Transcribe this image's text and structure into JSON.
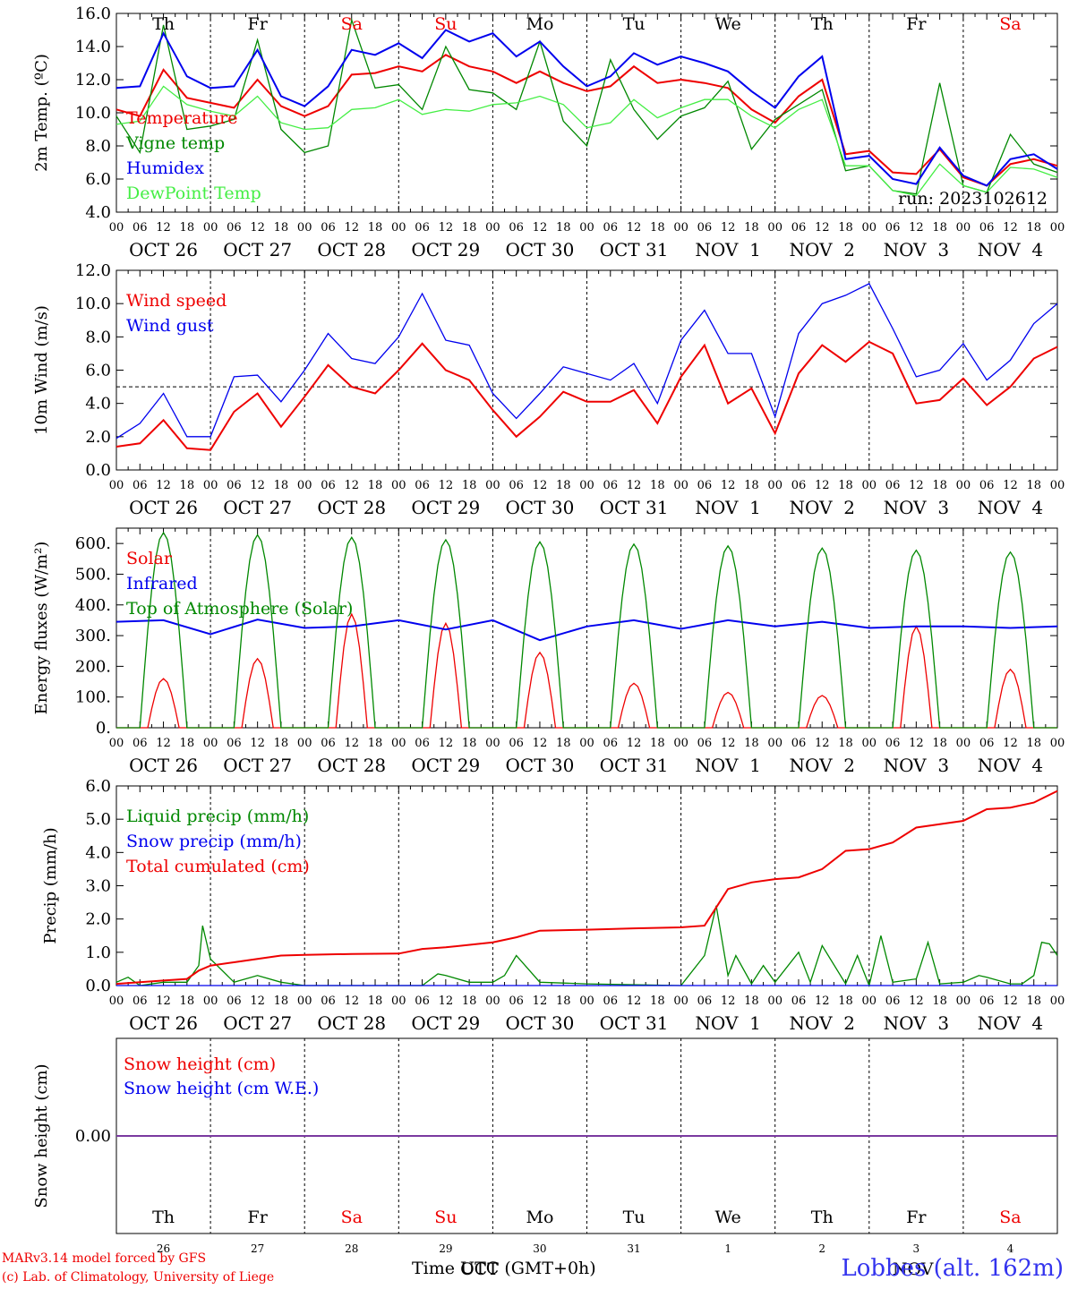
{
  "run_label": "run: 2023102612",
  "x_tick_hours": [
    "00",
    "06",
    "12",
    "18"
  ],
  "date_labels": [
    "OCT 26",
    "OCT 27",
    "OCT 28",
    "OCT 29",
    "OCT 30",
    "OCT 31",
    "NOV  1",
    "NOV  2",
    "NOV  3",
    "NOV  4"
  ],
  "weekdays": [
    "Th",
    "Fr",
    "Sa",
    "Su",
    "Mo",
    "Tu",
    "We",
    "Th",
    "Fr",
    "Sa"
  ],
  "weekend_color": "#ee0000",
  "bottom_day_numbers": [
    "26",
    "27",
    "28",
    "29",
    "30",
    "31",
    "1",
    "2",
    "3",
    "4"
  ],
  "bottom_month_labels": [
    "OCT",
    "NOV"
  ],
  "footer": {
    "model": "MARv3.14 model forced by GFS",
    "lab": "(c) Lab. of Climatology, University of Liege",
    "xlabel": "Time UTC (GMT+0h)",
    "station": "Lobbes (alt. 162m)"
  },
  "chart_data": [
    {
      "type": "line",
      "ylabel": "2m Temp. (ºC)",
      "ylim": [
        4.0,
        16.0
      ],
      "yticks": [
        "4.0",
        "6.0",
        "8.0",
        "10.0",
        "12.0",
        "14.0",
        "16.0"
      ],
      "x_units": "hours since OCT 26 00 UTC",
      "series": [
        {
          "name": "Temperature",
          "color": "#ee0000",
          "x": [
            0,
            6,
            12,
            18,
            24,
            30,
            36,
            42,
            48,
            54,
            60,
            66,
            72,
            78,
            84,
            90,
            96,
            102,
            108,
            114,
            120,
            126,
            132,
            138,
            144,
            150,
            156,
            162,
            168,
            174,
            180,
            186,
            192,
            198,
            204,
            210,
            216,
            222,
            228,
            234,
            240
          ],
          "y": [
            10.2,
            9.8,
            12.6,
            10.9,
            10.6,
            10.3,
            12.0,
            10.4,
            9.8,
            10.4,
            12.3,
            12.4,
            12.8,
            12.5,
            13.5,
            12.8,
            12.5,
            11.8,
            12.5,
            11.8,
            11.3,
            11.6,
            12.8,
            11.8,
            12.0,
            11.8,
            11.5,
            10.2,
            9.4,
            11.0,
            12.0,
            7.5,
            7.7,
            6.4,
            6.3,
            7.8,
            6.1,
            5.6,
            6.9,
            7.2,
            6.8
          ]
        },
        {
          "name": "Vigne temp",
          "color": "#008800",
          "x": [
            0,
            6,
            12,
            18,
            24,
            30,
            36,
            42,
            48,
            54,
            60,
            66,
            72,
            78,
            84,
            90,
            96,
            102,
            108,
            114,
            120,
            126,
            132,
            138,
            144,
            150,
            156,
            162,
            168,
            174,
            180,
            186,
            192,
            198,
            204,
            210,
            216,
            222,
            228,
            234,
            240
          ],
          "y": [
            9.8,
            7.6,
            15.3,
            9.0,
            9.2,
            9.6,
            14.4,
            9.0,
            7.6,
            8.0,
            15.6,
            11.5,
            11.7,
            10.2,
            14.0,
            11.4,
            11.2,
            10.2,
            14.3,
            9.5,
            8.0,
            13.2,
            10.2,
            8.4,
            9.8,
            10.3,
            11.9,
            7.8,
            9.6,
            10.5,
            11.4,
            6.5,
            6.8,
            5.3,
            5.1,
            11.8,
            5.6,
            5.2,
            8.7,
            6.9,
            6.4
          ]
        },
        {
          "name": "Humidex",
          "color": "#0000ee",
          "x": [
            0,
            6,
            12,
            18,
            24,
            30,
            36,
            42,
            48,
            54,
            60,
            66,
            72,
            78,
            84,
            90,
            96,
            102,
            108,
            114,
            120,
            126,
            132,
            138,
            144,
            150,
            156,
            162,
            168,
            174,
            180,
            186,
            192,
            198,
            204,
            210,
            216,
            222,
            228,
            234,
            240
          ],
          "y": [
            11.5,
            11.6,
            14.8,
            12.2,
            11.5,
            11.6,
            13.8,
            11.0,
            10.4,
            11.6,
            13.8,
            13.5,
            14.2,
            13.3,
            15.0,
            14.3,
            14.8,
            13.4,
            14.3,
            12.8,
            11.6,
            12.2,
            13.6,
            12.9,
            13.4,
            13.0,
            12.5,
            11.3,
            10.3,
            12.2,
            13.4,
            7.2,
            7.4,
            6.0,
            5.7,
            7.9,
            6.2,
            5.6,
            7.2,
            7.5,
            6.6
          ]
        },
        {
          "name": "DewPoint Temp",
          "color": "#44ee44",
          "x": [
            0,
            6,
            12,
            18,
            24,
            30,
            36,
            42,
            48,
            54,
            60,
            66,
            72,
            78,
            84,
            90,
            96,
            102,
            108,
            114,
            120,
            126,
            132,
            138,
            144,
            150,
            156,
            162,
            168,
            174,
            180,
            186,
            192,
            198,
            204,
            210,
            216,
            222,
            228,
            234,
            240
          ],
          "y": [
            9.3,
            9.5,
            11.6,
            10.5,
            10.1,
            9.8,
            11.0,
            9.4,
            9.0,
            9.1,
            10.2,
            10.3,
            10.8,
            9.9,
            10.2,
            10.1,
            10.5,
            10.6,
            11.0,
            10.5,
            9.1,
            9.4,
            10.8,
            9.7,
            10.3,
            10.8,
            10.8,
            9.8,
            9.1,
            10.2,
            10.8,
            6.8,
            6.8,
            5.3,
            5.0,
            6.9,
            5.6,
            5.2,
            6.7,
            6.6,
            6.1
          ]
        }
      ]
    },
    {
      "type": "line",
      "ylabel": "10m Wind (m/s)",
      "ylim": [
        0.0,
        12.0
      ],
      "yticks": [
        "0.0",
        "2.0",
        "4.0",
        "6.0",
        "8.0",
        "10.0",
        "12.0"
      ],
      "reference_line": 5.0,
      "x_units": "hours since OCT 26 00 UTC",
      "series": [
        {
          "name": "Wind speed",
          "color": "#ee0000",
          "x": [
            0,
            6,
            12,
            18,
            24,
            30,
            36,
            42,
            48,
            54,
            60,
            66,
            72,
            78,
            84,
            90,
            96,
            102,
            108,
            114,
            120,
            126,
            132,
            138,
            144,
            150,
            156,
            162,
            168,
            174,
            180,
            186,
            192,
            198,
            204,
            210,
            216,
            222,
            228,
            234,
            240
          ],
          "y": [
            1.4,
            1.6,
            3.0,
            1.3,
            1.2,
            3.5,
            4.6,
            2.6,
            4.4,
            6.3,
            5.0,
            4.6,
            6.0,
            7.6,
            6.0,
            5.4,
            3.6,
            2.0,
            3.2,
            4.7,
            4.1,
            4.1,
            4.8,
            2.8,
            5.6,
            7.5,
            4.0,
            4.9,
            2.2,
            5.8,
            7.5,
            6.5,
            7.7,
            7.0,
            4.0,
            4.2,
            5.5,
            3.9,
            5.0,
            6.7,
            7.4
          ]
        },
        {
          "name": "Wind gust",
          "color": "#0000ee",
          "x": [
            0,
            6,
            12,
            18,
            24,
            30,
            36,
            42,
            48,
            54,
            60,
            66,
            72,
            78,
            84,
            90,
            96,
            102,
            108,
            114,
            120,
            126,
            132,
            138,
            144,
            150,
            156,
            162,
            168,
            174,
            180,
            186,
            192,
            198,
            204,
            210,
            216,
            222,
            228,
            234,
            240
          ],
          "y": [
            1.9,
            2.8,
            4.6,
            2.0,
            2.0,
            5.6,
            5.7,
            4.1,
            6.0,
            8.2,
            6.7,
            6.4,
            8.0,
            10.6,
            7.8,
            7.5,
            4.6,
            3.1,
            4.6,
            6.2,
            5.8,
            5.4,
            6.4,
            4.0,
            7.8,
            9.6,
            7.0,
            7.0,
            3.2,
            8.2,
            10.0,
            10.5,
            11.2,
            8.5,
            5.6,
            6.0,
            7.6,
            5.4,
            6.6,
            8.8,
            10.0
          ]
        }
      ]
    },
    {
      "type": "line",
      "ylabel": "Energy fluxes (W/m²)",
      "ylim": [
        0,
        650
      ],
      "yticks": [
        "0.",
        "100.",
        "200.",
        "300.",
        "400.",
        "500.",
        "600."
      ],
      "x_units": "hours since OCT 26 00 UTC",
      "series": [
        {
          "name": "Solar",
          "color": "#ee0000",
          "peaks": [
            {
              "day": "OCT 26",
              "value": 160
            },
            {
              "day": "OCT 27",
              "value": 225
            },
            {
              "day": "OCT 28",
              "value": 370
            },
            {
              "day": "OCT 29",
              "value": 340
            },
            {
              "day": "OCT 30",
              "value": 245
            },
            {
              "day": "OCT 31",
              "value": 145
            },
            {
              "day": "NOV 1",
              "value": 115
            },
            {
              "day": "NOV 2",
              "value": 105
            },
            {
              "day": "NOV 3",
              "value": 330
            },
            {
              "day": "NOV 4",
              "value": 190
            }
          ]
        },
        {
          "name": "Infrared",
          "color": "#0000ee",
          "x": [
            0,
            12,
            24,
            36,
            48,
            60,
            72,
            84,
            96,
            108,
            120,
            132,
            144,
            156,
            168,
            180,
            192,
            204,
            216,
            228,
            240
          ],
          "y": [
            345,
            350,
            305,
            352,
            325,
            330,
            350,
            320,
            350,
            285,
            330,
            350,
            322,
            350,
            330,
            345,
            325,
            330,
            330,
            325,
            330
          ]
        },
        {
          "name": "Top of Atmosphere (Solar)",
          "color": "#008800",
          "peaks": [
            {
              "day": "OCT 26",
              "value": 635
            },
            {
              "day": "OCT 27",
              "value": 628
            },
            {
              "day": "OCT 28",
              "value": 620
            },
            {
              "day": "OCT 29",
              "value": 612
            },
            {
              "day": "OCT 30",
              "value": 605
            },
            {
              "day": "OCT 31",
              "value": 598
            },
            {
              "day": "NOV 1",
              "value": 592
            },
            {
              "day": "NOV 2",
              "value": 585
            },
            {
              "day": "NOV 3",
              "value": 578
            },
            {
              "day": "NOV 4",
              "value": 572
            }
          ]
        }
      ]
    },
    {
      "type": "line",
      "ylabel": "Precip (mm/h)",
      "ylim": [
        0.0,
        6.0
      ],
      "yticks": [
        "0.0",
        "1.0",
        "2.0",
        "3.0",
        "4.0",
        "5.0",
        "6.0"
      ],
      "x_units": "hours since OCT 26 00 UTC",
      "series": [
        {
          "name": "Liquid precip (mm/h)",
          "color": "#008800",
          "x": [
            0,
            3,
            6,
            12,
            18,
            21,
            22,
            24,
            30,
            36,
            42,
            48,
            60,
            72,
            78,
            82,
            84,
            90,
            96,
            99,
            102,
            108,
            120,
            144,
            150,
            153,
            156,
            158,
            162,
            165,
            168,
            174,
            177,
            180,
            186,
            189,
            192,
            195,
            198,
            204,
            207,
            210,
            216,
            220,
            222,
            228,
            231,
            234,
            236,
            238,
            240
          ],
          "y": [
            0.1,
            0.25,
            0.0,
            0.1,
            0.1,
            0.6,
            1.8,
            0.8,
            0.1,
            0.3,
            0.1,
            0.0,
            0.0,
            0.0,
            0.0,
            0.35,
            0.3,
            0.1,
            0.1,
            0.3,
            0.9,
            0.1,
            0.05,
            0.0,
            0.9,
            2.4,
            0.3,
            0.9,
            0.05,
            0.6,
            0.1,
            1.0,
            0.1,
            1.2,
            0.05,
            0.9,
            0.0,
            1.5,
            0.1,
            0.2,
            1.3,
            0.05,
            0.1,
            0.3,
            0.25,
            0.05,
            0.05,
            0.3,
            1.3,
            1.25,
            0.9
          ]
        },
        {
          "name": "Snow precip (mm/h)",
          "color": "#0000ee",
          "x": [
            0,
            240
          ],
          "y": [
            0.0,
            0.0
          ]
        },
        {
          "name": "Total cumulated (cm)",
          "color": "#ee0000",
          "x": [
            0,
            6,
            12,
            18,
            21,
            24,
            30,
            36,
            42,
            48,
            60,
            72,
            78,
            84,
            96,
            102,
            108,
            120,
            132,
            144,
            150,
            153,
            156,
            162,
            168,
            174,
            180,
            186,
            192,
            198,
            204,
            210,
            216,
            222,
            228,
            234,
            240
          ],
          "y": [
            0.05,
            0.1,
            0.15,
            0.2,
            0.45,
            0.6,
            0.7,
            0.8,
            0.9,
            0.92,
            0.95,
            0.96,
            1.1,
            1.15,
            1.3,
            1.45,
            1.65,
            1.68,
            1.72,
            1.75,
            1.8,
            2.35,
            2.9,
            3.1,
            3.2,
            3.25,
            3.5,
            4.05,
            4.1,
            4.3,
            4.75,
            4.85,
            4.95,
            5.3,
            5.35,
            5.5,
            5.85
          ]
        }
      ]
    },
    {
      "type": "line",
      "ylabel": "Snow height (cm)",
      "ylim": [
        -1.0,
        1.0
      ],
      "yticks": [
        "0.00"
      ],
      "series": [
        {
          "name": "Snow height (cm)",
          "color": "#ee0000",
          "x": [
            0,
            240
          ],
          "y": [
            0.0,
            0.0
          ]
        },
        {
          "name": "Snow height (cm W.E.)",
          "color": "#0000ee",
          "x": [
            0,
            240
          ],
          "y": [
            0.0,
            0.0
          ]
        }
      ]
    }
  ]
}
